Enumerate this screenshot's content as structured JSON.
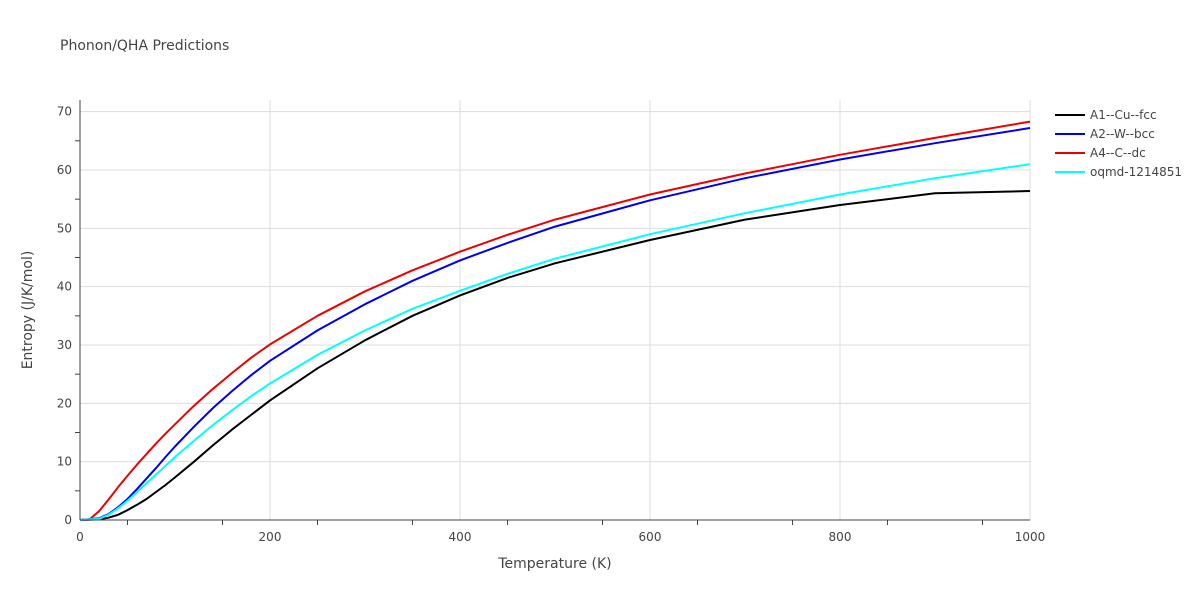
{
  "chart_data": {
    "type": "line",
    "title": "Phonon/QHA Predictions",
    "xlabel": "Temperature (K)",
    "ylabel": "Entropy (J/K/mol)",
    "xlim": [
      0,
      1000
    ],
    "ylim": [
      0,
      72
    ],
    "xticks": [
      0,
      200,
      400,
      600,
      800,
      1000
    ],
    "yticks": [
      0,
      10,
      20,
      30,
      40,
      50,
      60,
      70
    ],
    "grid": true,
    "legend_position": "right",
    "series": [
      {
        "name": "A1--Cu--fcc",
        "color": "#000000",
        "x": [
          0,
          20,
          30,
          40,
          50,
          60,
          70,
          80,
          90,
          100,
          120,
          140,
          160,
          180,
          200,
          250,
          300,
          350,
          400,
          450,
          500,
          600,
          700,
          800,
          900,
          1000
        ],
        "y": [
          0,
          0.1,
          0.4,
          0.9,
          1.7,
          2.6,
          3.6,
          4.8,
          6.0,
          7.3,
          10.0,
          12.8,
          15.5,
          18.0,
          20.5,
          26.0,
          30.8,
          35.0,
          38.5,
          41.5,
          44.0,
          48.0,
          51.5,
          54.0,
          56.0,
          56.4
        ]
      },
      {
        "name": "A2--W--bcc",
        "color": "#0000ee",
        "x": [
          0,
          20,
          30,
          40,
          50,
          60,
          70,
          80,
          90,
          100,
          120,
          140,
          160,
          180,
          200,
          250,
          300,
          350,
          400,
          450,
          500,
          600,
          700,
          800,
          900,
          1000
        ],
        "y": [
          0,
          0.3,
          1.0,
          2.2,
          3.6,
          5.3,
          7.1,
          8.9,
          10.8,
          12.6,
          16.0,
          19.2,
          22.1,
          24.8,
          27.3,
          32.5,
          37.0,
          41.0,
          44.5,
          47.5,
          50.3,
          54.8,
          58.6,
          61.8,
          64.6,
          67.2
        ]
      },
      {
        "name": "A4--C--dc",
        "color": "#ee0000",
        "x": [
          0,
          10,
          20,
          30,
          40,
          50,
          60,
          70,
          80,
          90,
          100,
          120,
          140,
          160,
          180,
          200,
          250,
          300,
          350,
          400,
          450,
          500,
          600,
          700,
          800,
          900,
          1000
        ],
        "y": [
          0,
          0.1,
          1.5,
          3.5,
          5.6,
          7.6,
          9.5,
          11.3,
          13.1,
          14.8,
          16.4,
          19.6,
          22.5,
          25.2,
          27.8,
          30.1,
          35.0,
          39.2,
          42.8,
          46.0,
          48.9,
          51.5,
          55.8,
          59.4,
          62.6,
          65.5,
          68.3
        ]
      },
      {
        "name": "oqmd-1214851",
        "color": "#00ffff",
        "x": [
          0,
          20,
          30,
          40,
          50,
          60,
          70,
          80,
          90,
          100,
          120,
          140,
          160,
          180,
          200,
          250,
          300,
          350,
          400,
          450,
          500,
          600,
          700,
          800,
          900,
          1000
        ],
        "y": [
          0,
          0.2,
          0.9,
          2.0,
          3.3,
          4.8,
          6.3,
          7.8,
          9.3,
          10.8,
          13.6,
          16.3,
          18.8,
          21.2,
          23.4,
          28.3,
          32.5,
          36.2,
          39.3,
          42.2,
          44.8,
          49.0,
          52.6,
          55.8,
          58.6,
          61.0
        ]
      }
    ]
  }
}
